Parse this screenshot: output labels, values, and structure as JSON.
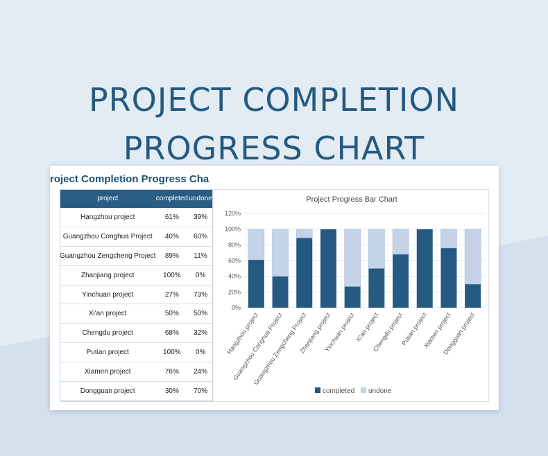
{
  "hero": {
    "line1": "PROJECT COMPLETION",
    "line2": "PROGRESS CHART"
  },
  "sheet": {
    "title": "Project Completion Progress Chart",
    "visible_title": "roject Completion Progress Cha"
  },
  "table": {
    "headers": [
      "project",
      "completed",
      "undone"
    ],
    "rows": [
      {
        "project": "Hangzhou project",
        "completed": "61%",
        "undone": "39%"
      },
      {
        "project": "Guangzhou Conghua Project",
        "completed": "40%",
        "undone": "60%"
      },
      {
        "project": "Guangzhou Zengcheng Project",
        "completed": "89%",
        "undone": "11%"
      },
      {
        "project": "Zhanjiang project",
        "completed": "100%",
        "undone": "0%"
      },
      {
        "project": "Yinchuan project",
        "completed": "27%",
        "undone": "73%"
      },
      {
        "project": "Xi'an project",
        "completed": "50%",
        "undone": "50%"
      },
      {
        "project": "Chengdu project",
        "completed": "68%",
        "undone": "32%"
      },
      {
        "project": "Putian project",
        "completed": "100%",
        "undone": "0%"
      },
      {
        "project": "Xiamen project",
        "completed": "76%",
        "undone": "24%"
      },
      {
        "project": "Dongguan project",
        "completed": "30%",
        "undone": "70%"
      }
    ]
  },
  "colors": {
    "completed": "#255a80",
    "undone": "#c5d3e8",
    "header": "#2a5d83",
    "title": "#255a80"
  },
  "chart_data": {
    "type": "bar",
    "stacked": true,
    "title": "Project Progress Bar Chart",
    "categories": [
      "Hangzhou project",
      "Guangzhou Conghua Project",
      "Guangzhou Zengcheng Project",
      "Zhanjiang project",
      "Yinchuan project",
      "Xi'an project",
      "Chengdu project",
      "Putian project",
      "Xiamen project",
      "Dongguan project"
    ],
    "series": [
      {
        "name": "completed",
        "values": [
          61,
          40,
          89,
          100,
          27,
          50,
          68,
          100,
          76,
          30
        ]
      },
      {
        "name": "undone",
        "values": [
          39,
          60,
          11,
          0,
          73,
          50,
          32,
          0,
          24,
          70
        ]
      }
    ],
    "yticks": [
      "0%",
      "20%",
      "40%",
      "60%",
      "80%",
      "100%",
      "120%"
    ],
    "ylim": [
      0,
      120
    ],
    "grid": true,
    "legend": "bottom"
  }
}
